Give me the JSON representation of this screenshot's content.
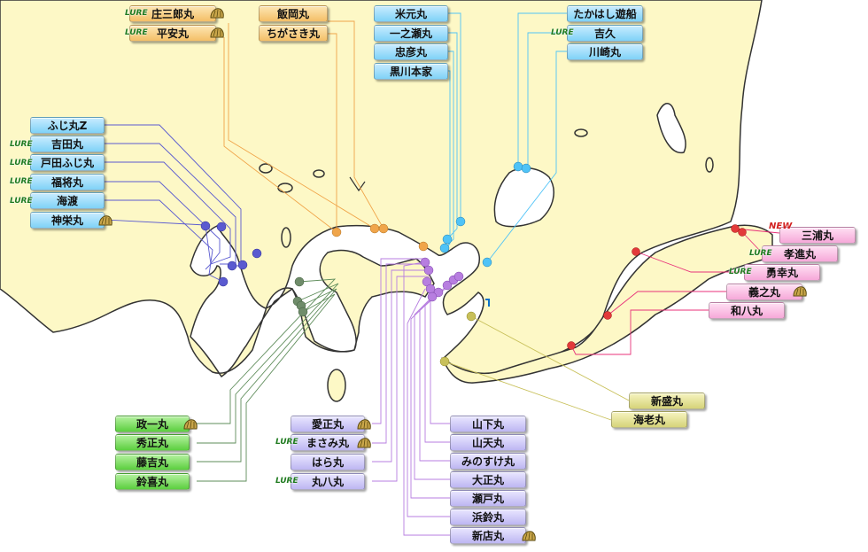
{
  "badges": {
    "lure": "LURE",
    "new": "NEW"
  },
  "colors": {
    "land": "#fdf8c6",
    "coast": "#333333",
    "sea": "#ffffff",
    "blue": "#4fc3f7",
    "orange": "#f0a54a",
    "green": "#5e8c5a",
    "violet": "#8a63d2",
    "purple": "#b77ee0",
    "pink": "#e8327a",
    "olive": "#c8c05a",
    "red": "#e23a3a"
  },
  "groups": {
    "nw": [
      "ふじ丸Z",
      "吉田丸",
      "戸田ふじ丸",
      "福将丸",
      "海渡",
      "神栄丸"
    ],
    "topleft": [
      "庄三郎丸",
      "平安丸"
    ],
    "topmid": [
      "飯岡丸",
      "ちがさき丸"
    ],
    "topcenter": [
      "米元丸",
      "一之瀬丸",
      "忠彦丸",
      "黒川本家"
    ],
    "topright": [
      "たかはし遊船",
      "吉久",
      "川崎丸"
    ],
    "east": [
      "三浦丸",
      "孝進丸",
      "勇幸丸",
      "義之丸",
      "和八丸"
    ],
    "southeast": [
      "新盛丸",
      "海老丸"
    ],
    "sw": [
      "政一丸",
      "秀正丸",
      "藤吉丸",
      "鈴喜丸"
    ],
    "scenter": [
      "愛正丸",
      "まさみ丸",
      "はら丸",
      "丸八丸"
    ],
    "sright": [
      "山下丸",
      "山天丸",
      "みのすけ丸",
      "大正丸",
      "瀬戸丸",
      "浜鈴丸",
      "新店丸"
    ]
  }
}
